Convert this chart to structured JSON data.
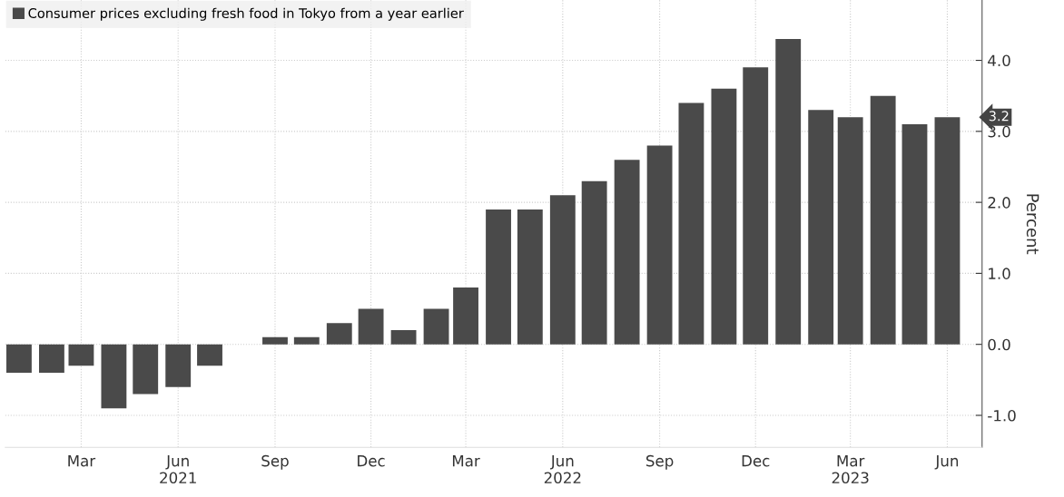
{
  "chart_data": {
    "type": "bar",
    "x": [
      "2021-01",
      "2021-02",
      "2021-03",
      "2021-04",
      "2021-05",
      "2021-06",
      "2021-07",
      "2021-08",
      "2021-09",
      "2021-10",
      "2021-11",
      "2021-12",
      "2022-01",
      "2022-02",
      "2022-03",
      "2022-04",
      "2022-05",
      "2022-06",
      "2022-07",
      "2022-08",
      "2022-09",
      "2022-10",
      "2022-11",
      "2022-12",
      "2023-01",
      "2023-02",
      "2023-03",
      "2023-04",
      "2023-05",
      "2023-06"
    ],
    "series": [
      {
        "name": "Consumer prices excluding fresh food in Tokyo from a year earlier",
        "color": "#4a4a4a",
        "values": [
          -0.4,
          -0.4,
          -0.3,
          -0.9,
          -0.7,
          -0.6,
          -0.3,
          0.0,
          0.1,
          0.1,
          0.3,
          0.5,
          0.2,
          0.5,
          0.8,
          1.9,
          1.9,
          2.1,
          2.3,
          2.6,
          2.8,
          3.4,
          3.6,
          3.9,
          4.3,
          3.3,
          3.2,
          3.5,
          3.1,
          3.2
        ]
      }
    ],
    "ylabel": "Percent",
    "ylim": [
      -1.45,
      4.85
    ],
    "yticks": [
      {
        "value": -1.0,
        "label": "-1.0"
      },
      {
        "value": 0.0,
        "label": "0.0"
      },
      {
        "value": 1.0,
        "label": "1.0"
      },
      {
        "value": 2.0,
        "label": "2.0"
      },
      {
        "value": 3.0,
        "label": "3.0"
      },
      {
        "value": 4.0,
        "label": "4.0"
      }
    ],
    "xlim": [
      "2020-12-19",
      "2023-07-04"
    ],
    "xticks": [
      {
        "value": "2021-03",
        "label": "Mar"
      },
      {
        "value": "2021-06",
        "label": "Jun\n2021"
      },
      {
        "value": "2021-09",
        "label": "Sep"
      },
      {
        "value": "2021-12",
        "label": "Dec"
      },
      {
        "value": "2022-03",
        "label": "Mar"
      },
      {
        "value": "2022-06",
        "label": "Jun\n2022"
      },
      {
        "value": "2022-09",
        "label": "Sep"
      },
      {
        "value": "2022-12",
        "label": "Dec"
      },
      {
        "value": "2023-03",
        "label": "Mar\n2023"
      },
      {
        "value": "2023-06",
        "label": "Jun"
      }
    ],
    "annotations": [
      "3.2"
    ],
    "grid": true,
    "legend": "top left"
  }
}
